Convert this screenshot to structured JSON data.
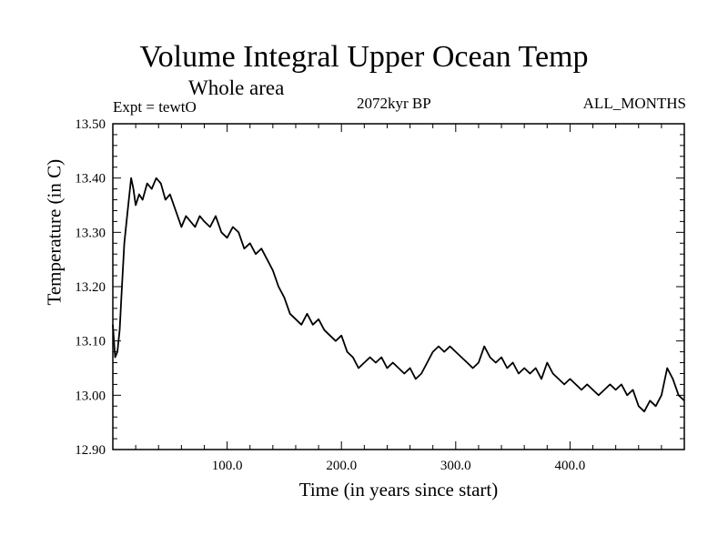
{
  "chart_data": {
    "type": "line",
    "title": "Volume Integral Upper Ocean Temp",
    "subtitle": "Whole area",
    "annotations": {
      "experiment": "Expt = tewtO",
      "period": "2072kyr BP",
      "months": "ALL_MONTHS"
    },
    "xlabel": "Time (in years since start)",
    "ylabel": "Temperature (in C)",
    "xlim": [
      0,
      500
    ],
    "ylim": [
      12.9,
      13.5
    ],
    "xticks": [
      100,
      200,
      300,
      400
    ],
    "xtick_labels": [
      "100.0",
      "200.0",
      "300.0",
      "400.0"
    ],
    "yticks": [
      12.9,
      13.0,
      13.1,
      13.2,
      13.3,
      13.4,
      13.5
    ],
    "ytick_labels": [
      "12.90",
      "13.00",
      "13.10",
      "13.20",
      "13.30",
      "13.40",
      "13.50"
    ],
    "series": [
      {
        "name": "Temperature",
        "x": [
          0,
          2,
          4,
          6,
          8,
          10,
          13,
          16,
          18,
          20,
          23,
          26,
          30,
          34,
          38,
          42,
          46,
          50,
          55,
          60,
          64,
          68,
          72,
          76,
          80,
          85,
          90,
          95,
          100,
          105,
          110,
          115,
          120,
          125,
          130,
          135,
          140,
          145,
          150,
          155,
          160,
          165,
          170,
          175,
          180,
          185,
          190,
          195,
          200,
          205,
          210,
          215,
          220,
          225,
          230,
          235,
          240,
          245,
          250,
          255,
          260,
          265,
          270,
          275,
          280,
          285,
          290,
          295,
          300,
          305,
          310,
          315,
          320,
          325,
          330,
          335,
          340,
          345,
          350,
          355,
          360,
          365,
          370,
          375,
          380,
          385,
          390,
          395,
          400,
          405,
          410,
          415,
          420,
          425,
          430,
          435,
          440,
          445,
          450,
          455,
          460,
          465,
          470,
          475,
          480,
          485,
          490,
          495,
          500
        ],
        "values": [
          13.13,
          13.07,
          13.08,
          13.12,
          13.2,
          13.28,
          13.34,
          13.4,
          13.38,
          13.35,
          13.37,
          13.36,
          13.39,
          13.38,
          13.4,
          13.39,
          13.36,
          13.37,
          13.34,
          13.31,
          13.33,
          13.32,
          13.31,
          13.33,
          13.32,
          13.31,
          13.33,
          13.3,
          13.29,
          13.31,
          13.3,
          13.27,
          13.28,
          13.26,
          13.27,
          13.25,
          13.23,
          13.2,
          13.18,
          13.15,
          13.14,
          13.13,
          13.15,
          13.13,
          13.14,
          13.12,
          13.11,
          13.1,
          13.11,
          13.08,
          13.07,
          13.05,
          13.06,
          13.07,
          13.06,
          13.07,
          13.05,
          13.06,
          13.05,
          13.04,
          13.05,
          13.03,
          13.04,
          13.06,
          13.08,
          13.09,
          13.08,
          13.09,
          13.08,
          13.07,
          13.06,
          13.05,
          13.06,
          13.09,
          13.07,
          13.06,
          13.07,
          13.05,
          13.06,
          13.04,
          13.05,
          13.04,
          13.05,
          13.03,
          13.06,
          13.04,
          13.03,
          13.02,
          13.03,
          13.02,
          13.01,
          13.02,
          13.01,
          13.0,
          13.01,
          13.02,
          13.01,
          13.02,
          13.0,
          13.01,
          12.98,
          12.97,
          12.99,
          12.98,
          13.0,
          13.05,
          13.03,
          13.0,
          12.99
        ]
      }
    ]
  }
}
